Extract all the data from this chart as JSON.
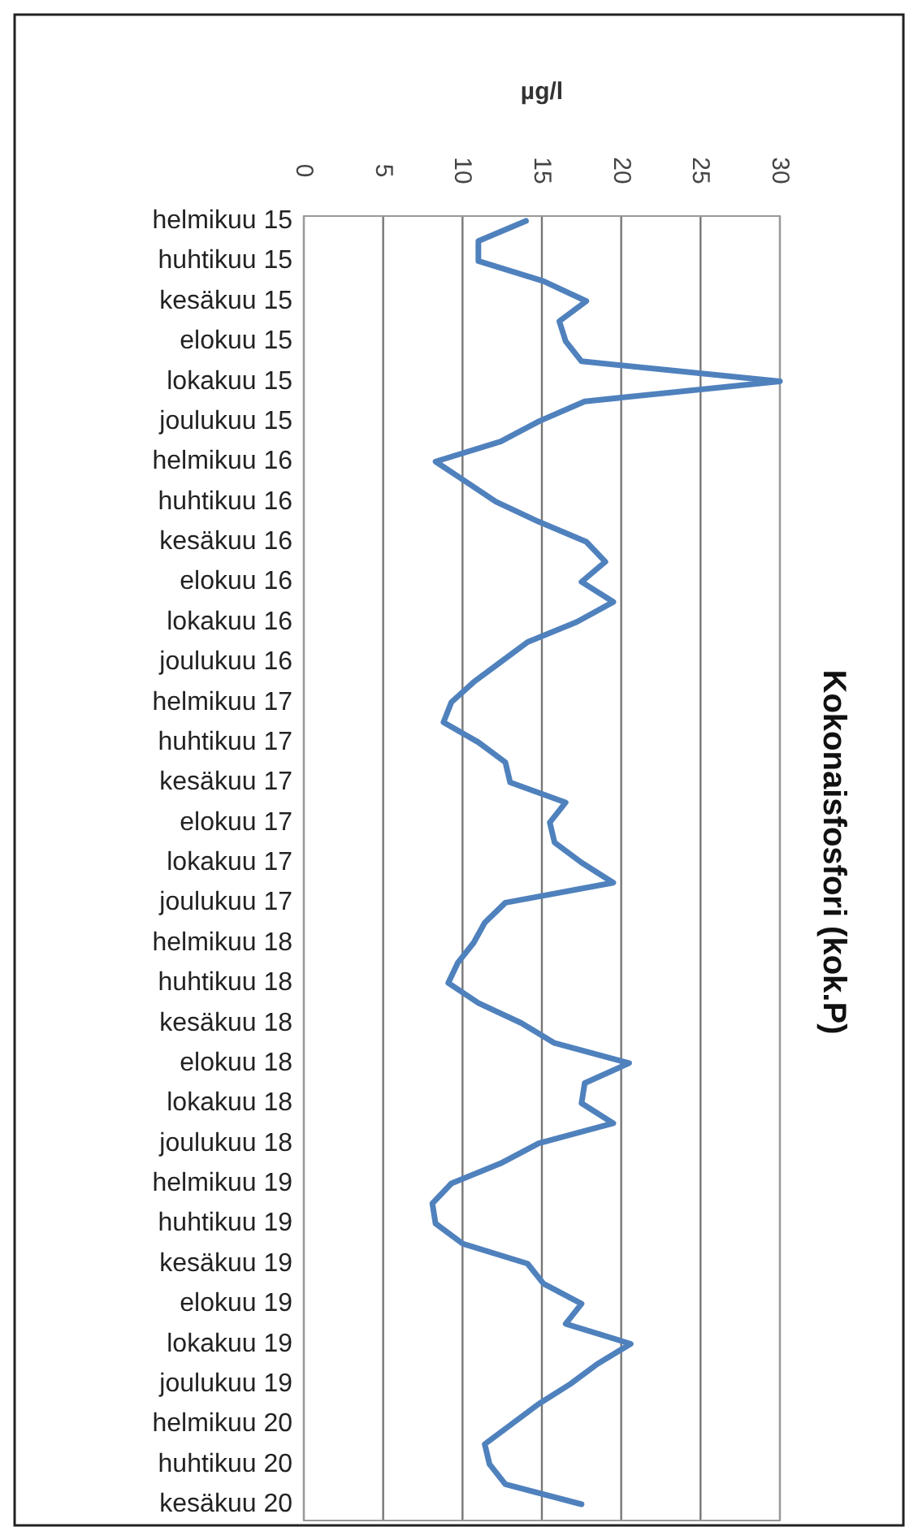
{
  "chart_data": {
    "type": "line",
    "orientation": "horizontal",
    "title": "Kokonaisfosfori (kok.P)",
    "xlabel": "µg/l",
    "categories": [
      "helmikuu 15",
      null,
      "huhtikuu 15",
      null,
      "kesäkuu 15",
      null,
      "elokuu 15",
      null,
      "lokakuu 15",
      null,
      "joulukuu 15",
      null,
      "helmikuu 16",
      null,
      "huhtikuu 16",
      null,
      "kesäkuu 16",
      null,
      "elokuu 16",
      null,
      "lokakuu 16",
      null,
      "joulukuu 16",
      null,
      "helmikuu 17",
      null,
      "huhtikuu 17",
      null,
      "kesäkuu 17",
      null,
      "elokuu 17",
      null,
      "lokakuu 17",
      null,
      "joulukuu 17",
      null,
      "helmikuu 18",
      null,
      "huhtikuu 18",
      null,
      "kesäkuu 18",
      null,
      "elokuu 18",
      null,
      "lokakuu 18",
      null,
      "joulukuu 18",
      null,
      "helmikuu 19",
      null,
      "huhtikuu 19",
      null,
      "kesäkuu 19",
      null,
      "elokuu 19",
      null,
      "lokakuu 19",
      null,
      "joulukuu 19",
      null,
      "helmikuu 20",
      null,
      "huhtikuu 20",
      null,
      "kesäkuu 20"
    ],
    "series": [
      {
        "color": "#4f81bd",
        "values": [
          14,
          11,
          11,
          15.1,
          17.8,
          16.1,
          16.5,
          17.5,
          30,
          17.7,
          14.8,
          12.4,
          8.3,
          10.2,
          12.1,
          14.8,
          17.8,
          19,
          17.5,
          19.5,
          17.2,
          14.1,
          12.4,
          10.7,
          9.3,
          8.8,
          11,
          12.7,
          13,
          16.5,
          15.5,
          15.8,
          17.5,
          19.5,
          12.7,
          11.4,
          10.7,
          9.7,
          9.1,
          11,
          13.7,
          15.8,
          20.5,
          17.7,
          17.5,
          19.5,
          14.8,
          12.4,
          9.3,
          8.1,
          8.3,
          10,
          14.1,
          15.1,
          17.5,
          16.5,
          20.6,
          18.5,
          16.8,
          14.8,
          13.1,
          11.4,
          11.7,
          12.7,
          17.5
        ]
      }
    ],
    "xlim": [
      0,
      30
    ],
    "xticks": [
      0,
      5,
      10,
      15,
      20,
      25,
      30
    ],
    "grid": "x",
    "marker": "none",
    "line_style": "solid"
  }
}
